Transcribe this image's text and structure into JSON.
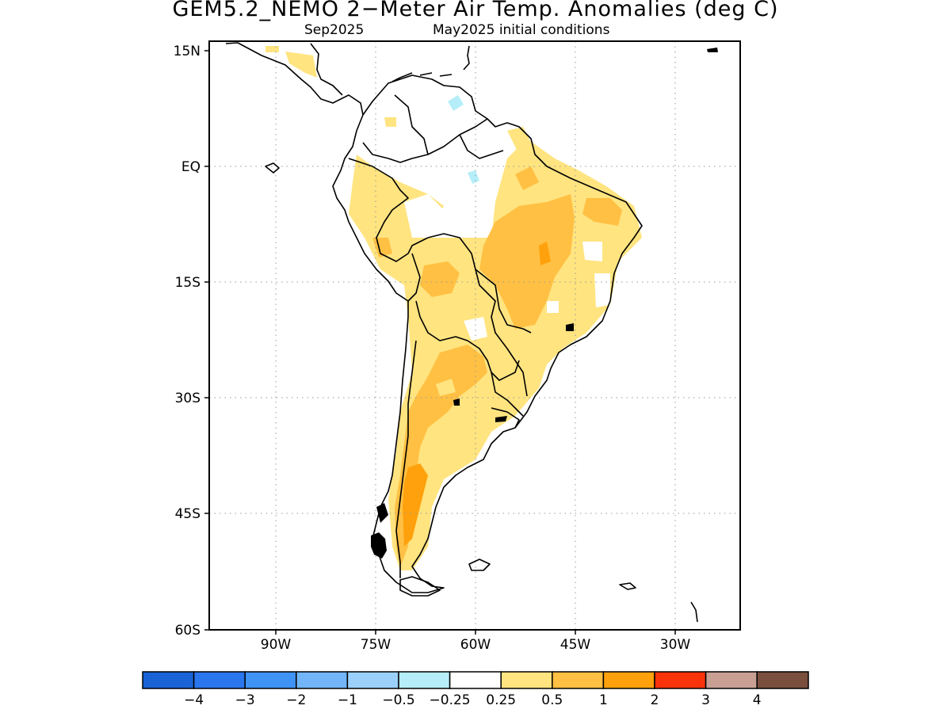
{
  "title": "GEM5.2_NEMO 2−Meter Air Temp. Anomalies (deg C)",
  "subtitle_left": "Sep2025",
  "subtitle_right": "May2025 initial conditions",
  "map": {
    "lat_labels": [
      "15N",
      "EQ",
      "15S",
      "30S",
      "45S",
      "60S"
    ],
    "lon_labels": [
      "90W",
      "75W",
      "60W",
      "45W",
      "30W"
    ],
    "lat_range": [
      -60,
      15
    ],
    "lon_range": [
      -100,
      -20
    ],
    "grid": "dotted",
    "region": "South America"
  },
  "colorbar": {
    "labels": [
      "−4",
      "−3",
      "−2",
      "−1",
      "−0.5",
      "−0.25",
      "0.25",
      "0.5",
      "1",
      "2",
      "3",
      "4"
    ],
    "colors": [
      "#1a63d6",
      "#2a76ee",
      "#3f93f5",
      "#72b5f8",
      "#9bd0fb",
      "#b5eef9",
      "#ffffff",
      "#ffe480",
      "#ffc043",
      "#ffa10c",
      "#fb330a",
      "#c99f93",
      "#7a4f3e"
    ]
  },
  "colors": {
    "land_0.25_0.5": "#ffe480",
    "land_0.5_1": "#ffc043",
    "land_1_2": "#ffa10c",
    "land_neg_0.25_neg_0.5": "#b5eef9"
  }
}
